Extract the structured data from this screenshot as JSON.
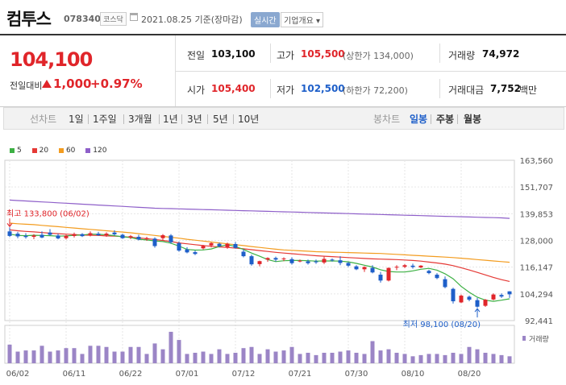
{
  "stock": {
    "name": "컴투스",
    "code": "078340",
    "market": "코스닥",
    "date": "2021.08.25 기준(장마감)",
    "realtime_label": "실시간",
    "overview_label": "기업개요 ▾"
  },
  "summary": {
    "price": "104,100",
    "change_label": "전일대비",
    "change_value": "1,000",
    "change_pct": "+0.97%",
    "prev_close_label": "전일",
    "prev_close": "103,100",
    "high_label": "고가",
    "high": "105,500",
    "upper_limit": "(상한가 134,000)",
    "volume_label": "거래량",
    "volume": "74,972",
    "open_label": "시가",
    "open": "105,400",
    "low_label": "저가",
    "low": "102,500",
    "lower_limit": "(하한가 72,200)",
    "amount_label": "거래대금",
    "amount": "7,752",
    "amount_unit": "백만"
  },
  "toolbar": {
    "line_chart_label": "선차트",
    "periods": [
      "1일",
      "1주일",
      "3개월",
      "1년",
      "3년",
      "5년",
      "10년"
    ],
    "candle_chart_label": "봉차트",
    "candle_periods": [
      "일봉",
      "주봉",
      "월봉"
    ]
  },
  "colors": {
    "up": "#e0252a",
    "down": "#1e5fc9",
    "ma5": "#3cb043",
    "ma20": "#e53935",
    "ma60": "#f39c1f",
    "ma120": "#8e5fc9",
    "volume": "#9b85c6"
  },
  "chart_data": {
    "type": "candlestick",
    "legend": [
      "5",
      "20",
      "60",
      "120"
    ],
    "y_ticks": [
      "163,560",
      "151,707",
      "139,853",
      "128,000",
      "116,147",
      "104,294",
      "92,441"
    ],
    "y_range": [
      92441,
      163560
    ],
    "x_ticks": [
      "06/02",
      "06/11",
      "06/22",
      "07/01",
      "07/12",
      "07/21",
      "07/30",
      "08/10",
      "08/20"
    ],
    "volume_label": "거래량",
    "annotation_high": "최고 133,800 (06/02)",
    "annotation_low": "최저 98,100 (08/20)",
    "candles": [
      {
        "o": 132000,
        "h": 133800,
        "l": 129500,
        "c": 130000
      },
      {
        "o": 131000,
        "h": 131800,
        "l": 129000,
        "c": 129800
      },
      {
        "o": 130000,
        "h": 131200,
        "l": 128800,
        "c": 129500
      },
      {
        "o": 129600,
        "h": 130800,
        "l": 128600,
        "c": 130200
      },
      {
        "o": 130500,
        "h": 132000,
        "l": 129000,
        "c": 129300
      },
      {
        "o": 131500,
        "h": 133000,
        "l": 130000,
        "c": 130500
      },
      {
        "o": 130200,
        "h": 131000,
        "l": 128500,
        "c": 128900
      },
      {
        "o": 129000,
        "h": 130500,
        "l": 128400,
        "c": 130100
      },
      {
        "o": 130000,
        "h": 131500,
        "l": 129300,
        "c": 130800
      },
      {
        "o": 130800,
        "h": 131200,
        "l": 129500,
        "c": 129900
      },
      {
        "o": 130500,
        "h": 132000,
        "l": 129800,
        "c": 131200
      },
      {
        "o": 131000,
        "h": 131800,
        "l": 130000,
        "c": 130300
      },
      {
        "o": 130300,
        "h": 131600,
        "l": 129600,
        "c": 131000
      },
      {
        "o": 131500,
        "h": 132500,
        "l": 130200,
        "c": 130700
      },
      {
        "o": 130500,
        "h": 131000,
        "l": 128700,
        "c": 129000
      },
      {
        "o": 129300,
        "h": 130400,
        "l": 128600,
        "c": 129900
      },
      {
        "o": 129600,
        "h": 130500,
        "l": 128000,
        "c": 128400
      },
      {
        "o": 128500,
        "h": 129600,
        "l": 127800,
        "c": 129000
      },
      {
        "o": 128800,
        "h": 129400,
        "l": 124800,
        "c": 125500
      },
      {
        "o": 129000,
        "h": 130800,
        "l": 128200,
        "c": 130300
      },
      {
        "o": 130200,
        "h": 130800,
        "l": 126500,
        "c": 127200
      },
      {
        "o": 126800,
        "h": 127500,
        "l": 123000,
        "c": 123500
      },
      {
        "o": 124000,
        "h": 125000,
        "l": 122300,
        "c": 122700
      },
      {
        "o": 122800,
        "h": 123500,
        "l": 121500,
        "c": 122000
      },
      {
        "o": 124500,
        "h": 126000,
        "l": 124000,
        "c": 125500
      },
      {
        "o": 125800,
        "h": 127200,
        "l": 124900,
        "c": 126800
      },
      {
        "o": 126500,
        "h": 127000,
        "l": 125000,
        "c": 125400
      },
      {
        "o": 125000,
        "h": 127000,
        "l": 124300,
        "c": 126500
      },
      {
        "o": 126400,
        "h": 127300,
        "l": 124400,
        "c": 124700
      },
      {
        "o": 123000,
        "h": 124000,
        "l": 120500,
        "c": 121000
      },
      {
        "o": 121000,
        "h": 121700,
        "l": 116800,
        "c": 117400
      },
      {
        "o": 117500,
        "h": 119000,
        "l": 116500,
        "c": 118800
      },
      {
        "o": 119500,
        "h": 120500,
        "l": 118500,
        "c": 120200
      },
      {
        "o": 120200,
        "h": 120800,
        "l": 118600,
        "c": 119500
      },
      {
        "o": 119700,
        "h": 120500,
        "l": 118800,
        "c": 120000
      },
      {
        "o": 119700,
        "h": 120500,
        "l": 117300,
        "c": 117900
      },
      {
        "o": 119000,
        "h": 119500,
        "l": 118300,
        "c": 119000
      },
      {
        "o": 118700,
        "h": 119500,
        "l": 117300,
        "c": 117900
      },
      {
        "o": 118700,
        "h": 119500,
        "l": 117600,
        "c": 118300
      },
      {
        "o": 118200,
        "h": 120800,
        "l": 117500,
        "c": 119800
      },
      {
        "o": 119500,
        "h": 120000,
        "l": 118600,
        "c": 119300
      },
      {
        "o": 119200,
        "h": 121000,
        "l": 117000,
        "c": 118000
      },
      {
        "o": 118000,
        "h": 118400,
        "l": 116200,
        "c": 116800
      },
      {
        "o": 116500,
        "h": 117000,
        "l": 114800,
        "c": 115200
      },
      {
        "o": 115200,
        "h": 116500,
        "l": 114000,
        "c": 116200
      },
      {
        "o": 115800,
        "h": 117000,
        "l": 113400,
        "c": 113800
      },
      {
        "o": 112800,
        "h": 114000,
        "l": 109300,
        "c": 110200
      },
      {
        "o": 110200,
        "h": 116000,
        "l": 109800,
        "c": 115800
      },
      {
        "o": 116000,
        "h": 117000,
        "l": 114800,
        "c": 116300
      },
      {
        "o": 116300,
        "h": 117500,
        "l": 115700,
        "c": 117000
      },
      {
        "o": 116800,
        "h": 117700,
        "l": 115500,
        "c": 116200
      },
      {
        "o": 116000,
        "h": 117000,
        "l": 115700,
        "c": 116800
      },
      {
        "o": 114500,
        "h": 115000,
        "l": 113000,
        "c": 113500
      },
      {
        "o": 112800,
        "h": 113500,
        "l": 110800,
        "c": 111300
      },
      {
        "o": 110800,
        "h": 112000,
        "l": 106800,
        "c": 107300
      },
      {
        "o": 106500,
        "h": 107000,
        "l": 100000,
        "c": 101000
      },
      {
        "o": 100500,
        "h": 104000,
        "l": 100200,
        "c": 103500
      },
      {
        "o": 103000,
        "h": 103500,
        "l": 101000,
        "c": 101700
      },
      {
        "o": 101500,
        "h": 102500,
        "l": 98100,
        "c": 98600
      },
      {
        "o": 99000,
        "h": 102000,
        "l": 98500,
        "c": 101700
      },
      {
        "o": 101800,
        "h": 104500,
        "l": 101400,
        "c": 104000
      },
      {
        "o": 103800,
        "h": 104500,
        "l": 102500,
        "c": 103100
      },
      {
        "o": 105400,
        "h": 105500,
        "l": 102500,
        "c": 104100
      }
    ],
    "volumes": [
      16,
      10,
      11,
      11,
      15,
      10,
      11,
      13,
      13,
      8,
      15,
      15,
      14,
      10,
      10,
      14,
      14,
      8,
      17,
      12,
      27,
      20,
      8,
      9,
      10,
      8,
      12,
      8,
      9,
      13,
      14,
      8,
      12,
      10,
      11,
      14,
      8,
      9,
      7,
      9,
      9,
      10,
      11,
      9,
      8,
      19,
      11,
      12,
      9,
      8,
      6,
      7,
      8,
      8,
      7,
      9,
      8,
      14,
      12,
      9,
      8,
      7,
      6
    ],
    "ma5": [
      130800,
      130200,
      130100,
      130300,
      130200,
      130100,
      129900,
      130000,
      130300,
      130400,
      130800,
      130700,
      130500,
      130100,
      129600,
      129300,
      128500,
      128200,
      127800,
      127500,
      126800,
      125500,
      124000,
      123700,
      123800,
      124200,
      125300,
      126100,
      125300,
      124000,
      122400,
      121000,
      119500,
      118600,
      119000,
      119100,
      119100,
      119000,
      118800,
      118900,
      118900,
      118800,
      118500,
      117800,
      117000,
      116200,
      115000,
      114200,
      114000,
      114000,
      114500,
      115200,
      115600,
      114800,
      113200,
      111000,
      107600,
      105000,
      102800,
      101500,
      101000,
      101500,
      102100
    ],
    "ma20": [
      132700,
      132300,
      132000,
      131800,
      131500,
      131200,
      131000,
      130800,
      130600,
      130400,
      130300,
      130200,
      130000,
      129900,
      129700,
      129400,
      129100,
      128800,
      128400,
      128000,
      127500,
      126900,
      126500,
      126100,
      125700,
      125400,
      125100,
      124900,
      124600,
      124300,
      123900,
      123500,
      123100,
      122700,
      122400,
      122100,
      121800,
      121500,
      121200,
      121000,
      120800,
      120600,
      120400,
      120200,
      120000,
      119800,
      119700,
      119600,
      119500,
      119300,
      119100,
      118800,
      118400,
      118000,
      117500,
      116800,
      115900,
      114900,
      113800,
      112700,
      111600,
      110600,
      109800
    ],
    "ma60": [
      135700,
      135400,
      135200,
      135000,
      134700,
      134400,
      134100,
      133800,
      133500,
      133200,
      132900,
      132600,
      132300,
      132000,
      131700,
      131400,
      131000,
      130600,
      130200,
      129800,
      129400,
      129000,
      128500,
      128100,
      127700,
      127300,
      126900,
      126500,
      126100,
      125700,
      125300,
      124900,
      124500,
      124100,
      123800,
      123600,
      123400,
      123200,
      123000,
      122900,
      122800,
      122700,
      122600,
      122500,
      122400,
      122300,
      122200,
      122000,
      121800,
      121600,
      121400,
      121200,
      121000,
      120800,
      120600,
      120400,
      120100,
      119800,
      119500,
      119200,
      118900,
      118600,
      118300
    ],
    "ma120": [
      145900,
      145700,
      145500,
      145300,
      145100,
      144900,
      144700,
      144500,
      144300,
      144100,
      143900,
      143700,
      143500,
      143300,
      143100,
      142900,
      142700,
      142500,
      142300,
      142200,
      142100,
      142000,
      141900,
      141800,
      141700,
      141600,
      141500,
      141400,
      141300,
      141200,
      141100,
      141000,
      140900,
      140800,
      140700,
      140600,
      140500,
      140400,
      140300,
      140200,
      140100,
      140000,
      139900,
      139800,
      139700,
      139600,
      139500,
      139400,
      139300,
      139200,
      139100,
      139000,
      138900,
      138800,
      138700,
      138600,
      138500,
      138400,
      138300,
      138200,
      138100,
      138000,
      137800
    ]
  }
}
